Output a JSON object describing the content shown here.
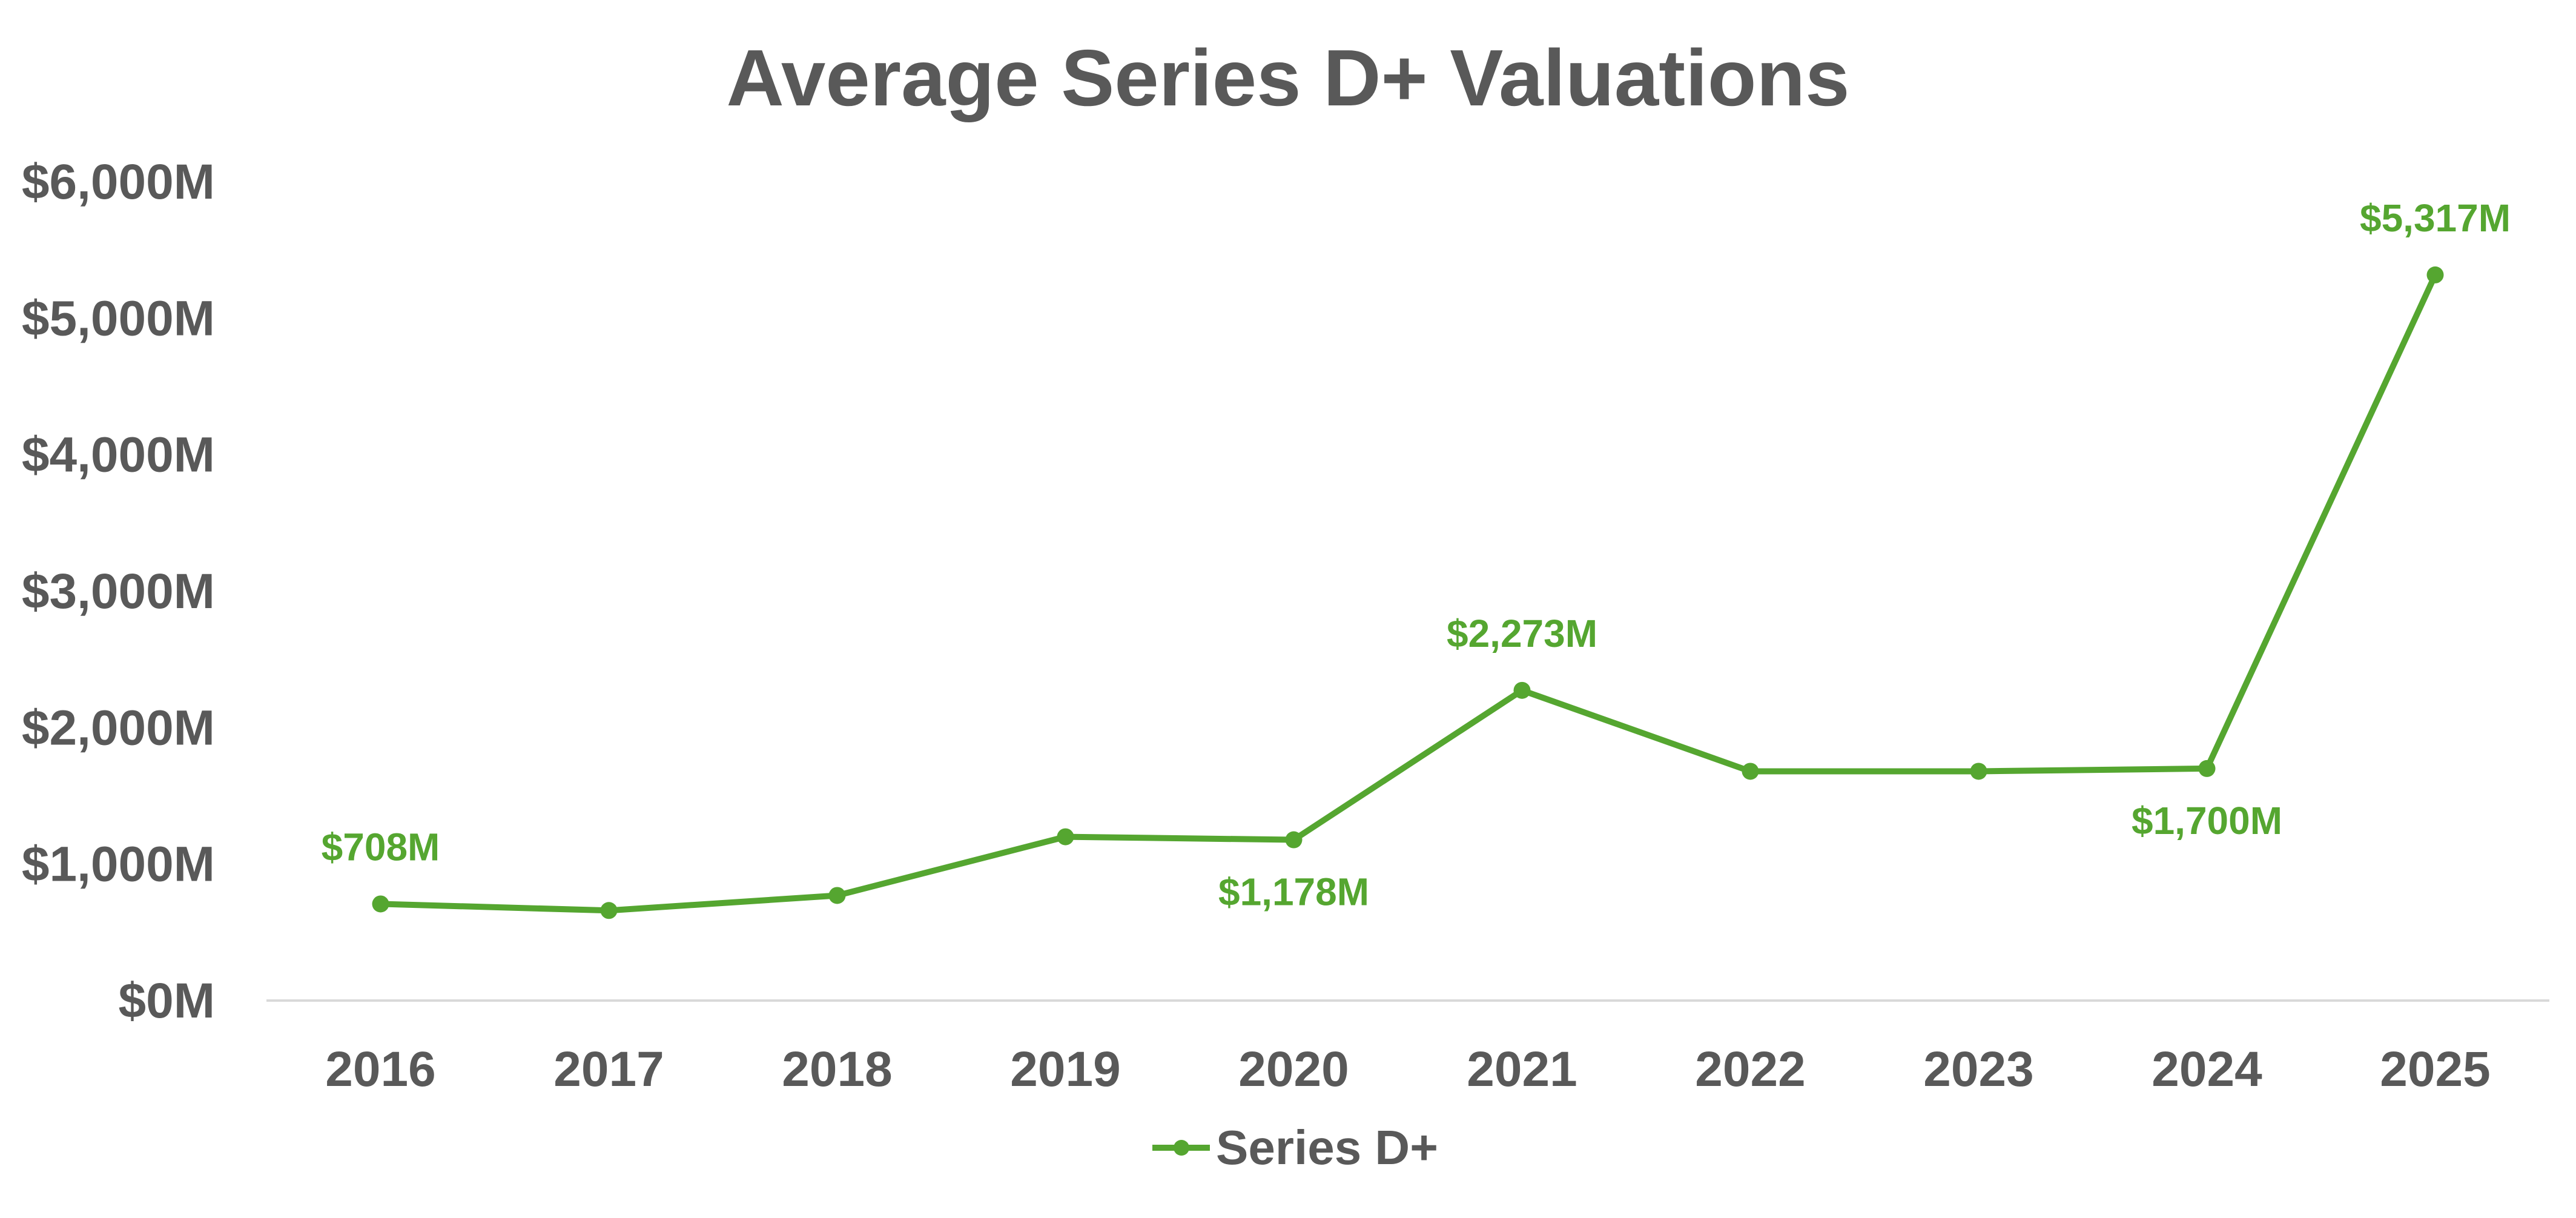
{
  "chart_data": {
    "type": "line",
    "title": "Average Series D+ Valuations",
    "xlabel": "",
    "ylabel": "",
    "categories": [
      "2016",
      "2017",
      "2018",
      "2019",
      "2020",
      "2021",
      "2022",
      "2023",
      "2024",
      "2025"
    ],
    "series": [
      {
        "name": "Series D+",
        "values": [
          708,
          660,
          770,
          1200,
          1178,
          2273,
          1680,
          1680,
          1700,
          5317
        ],
        "data_labels": [
          "$708M",
          "",
          "",
          "",
          "$1,178M",
          "$2,273M",
          "",
          "",
          "$1,700M",
          "$5,317M"
        ]
      }
    ],
    "ylim": [
      0,
      6000
    ],
    "yticks": [
      0,
      1000,
      2000,
      3000,
      4000,
      5000,
      6000
    ],
    "ytick_labels": [
      "$0M",
      "$1,000M",
      "$2,000M",
      "$3,000M",
      "$4,000M",
      "$5,000M",
      "$6,000M"
    ],
    "grid": false,
    "legend": "bottom-center",
    "colors": {
      "series": "#55a630",
      "title": "#595959",
      "axis_text": "#595959",
      "axis_line": "#d9d9d9"
    }
  }
}
